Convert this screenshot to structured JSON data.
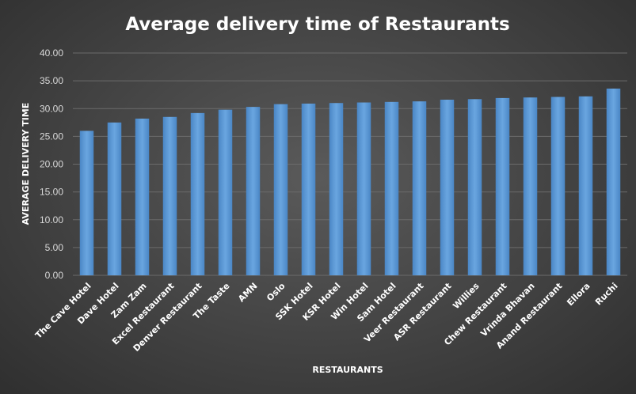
{
  "chart_data": {
    "type": "bar",
    "title": "Average delivery time of Restaurants",
    "xlabel": "RESTAURANTS",
    "ylabel": "AVERAGE DELIVERY TIME",
    "ylim": [
      0,
      40
    ],
    "yticks": [
      "0.00",
      "5.00",
      "10.00",
      "15.00",
      "20.00",
      "25.00",
      "30.00",
      "35.00",
      "40.00"
    ],
    "grid": true,
    "legend": "none",
    "bar_color": "#5b9bd5",
    "categories": [
      "The Cave Hotel",
      "Dave Hotel",
      "Zam Zam",
      "Excel Restaurant",
      "Denver Restaurant",
      "The Taste",
      "AMN",
      "Oslo",
      "SSK Hotel",
      "KSR Hotel",
      "Win Hotel",
      "Sam Hotel",
      "Veer Restaurant",
      "ASR Restaurant",
      "Willies",
      "Chew Restaurant",
      "Vrinda Bhavan",
      "Anand Restaurant",
      "Ellora",
      "Ruchi"
    ],
    "values": [
      26.0,
      27.5,
      28.2,
      28.5,
      29.2,
      29.8,
      30.3,
      30.8,
      30.9,
      31.0,
      31.1,
      31.2,
      31.3,
      31.6,
      31.7,
      31.9,
      32.0,
      32.1,
      32.2,
      33.6
    ]
  }
}
